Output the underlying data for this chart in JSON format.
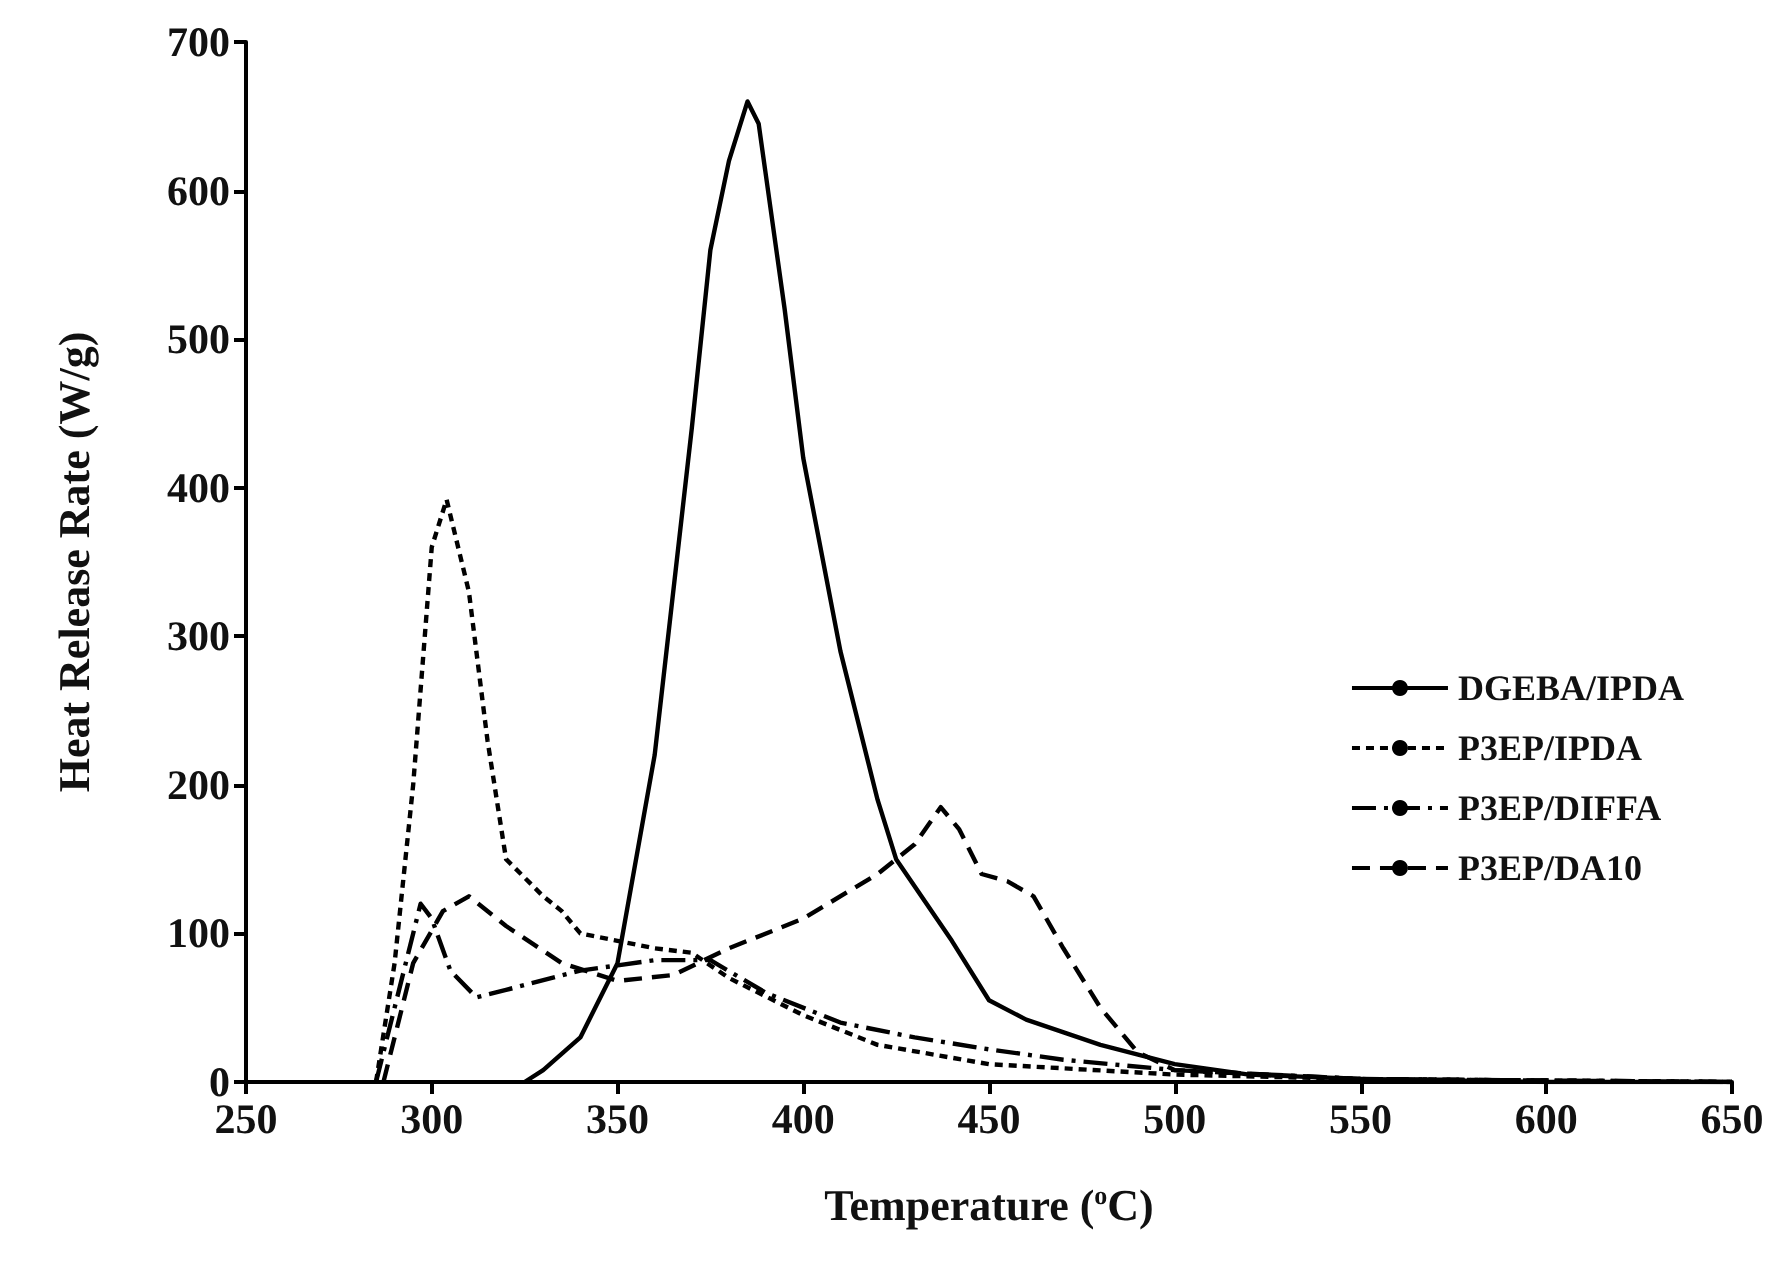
{
  "chart_data": {
    "type": "line",
    "xlabel": "Temperature ($^{o}$C)",
    "ylabel": "Heat Release Rate (W/g)",
    "xlim": [
      250,
      650
    ],
    "xticks": [
      250,
      300,
      350,
      400,
      450,
      500,
      550,
      600,
      650
    ],
    "ylim": [
      0,
      700
    ],
    "yticks": [
      0,
      100,
      200,
      300,
      400,
      500,
      600,
      700
    ],
    "grid": false,
    "legend": "right",
    "marker": "none",
    "series": [
      {
        "name": "DGEBA/IPDA",
        "color": "#000000",
        "line_style": "solid",
        "x": [
          325,
          330,
          340,
          350,
          360,
          370,
          375,
          380,
          385,
          388,
          395,
          400,
          410,
          420,
          425,
          440,
          450,
          460,
          480,
          500,
          520,
          550,
          600,
          650
        ],
        "values": [
          0,
          8,
          30,
          80,
          220,
          440,
          560,
          620,
          660,
          645,
          520,
          420,
          290,
          190,
          150,
          95,
          55,
          42,
          25,
          12,
          5,
          2,
          0,
          0
        ]
      },
      {
        "name": "P3EP/IPDA",
        "color": "#000000",
        "line_style": "dotted",
        "x": [
          285,
          290,
          295,
          300,
          304,
          310,
          315,
          320,
          330,
          335,
          340,
          350,
          360,
          370,
          380,
          400,
          420,
          450,
          500,
          550,
          650
        ],
        "values": [
          0,
          80,
          200,
          360,
          392,
          330,
          230,
          150,
          125,
          115,
          100,
          95,
          90,
          87,
          70,
          45,
          25,
          12,
          5,
          2,
          0
        ]
      },
      {
        "name": "P3EP/DIFFA",
        "color": "#000000",
        "line_style": "dashdot",
        "x": [
          285,
          290,
          297,
          300,
          305,
          312,
          320,
          340,
          360,
          375,
          390,
          410,
          430,
          450,
          470,
          500,
          550,
          650
        ],
        "values": [
          0,
          50,
          120,
          110,
          75,
          57,
          62,
          75,
          82,
          82,
          60,
          40,
          30,
          22,
          15,
          8,
          2,
          0
        ]
      },
      {
        "name": "P3EP/DA10",
        "color": "#000000",
        "line_style": "dashed",
        "x": [
          287,
          295,
          303,
          310,
          320,
          335,
          350,
          365,
          380,
          400,
          420,
          430,
          437,
          442,
          448,
          455,
          462,
          470,
          480,
          490,
          500,
          550,
          650
        ],
        "values": [
          0,
          80,
          115,
          125,
          105,
          80,
          68,
          72,
          90,
          110,
          140,
          160,
          185,
          170,
          140,
          135,
          125,
          90,
          50,
          20,
          8,
          2,
          0
        ]
      }
    ]
  }
}
